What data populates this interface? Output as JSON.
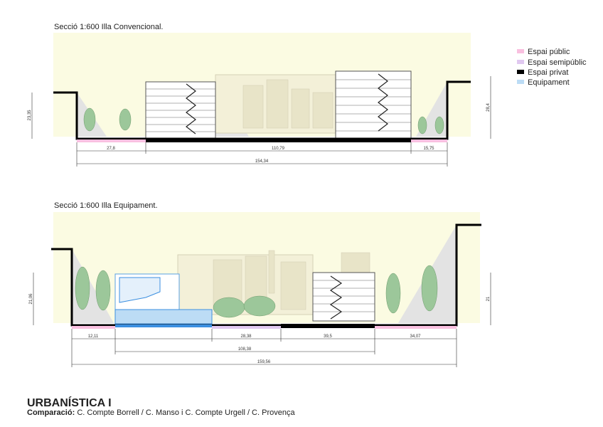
{
  "sections": [
    {
      "title": "Secció  1:600 Illa Convencional.",
      "dimensions": {
        "height_left": "23,35",
        "height_right": "28,4",
        "segments": [
          "27,8",
          "110,79",
          "15,75"
        ],
        "total": "154,34"
      }
    },
    {
      "title": "Secció  1:600 Illa Equipament.",
      "dimensions": {
        "height_left": "21,06",
        "height_right": "21",
        "segments": [
          "12,11",
          "28,38",
          "39,5",
          "34,07"
        ],
        "span": "108,38",
        "total": "159,56"
      }
    }
  ],
  "legend": [
    "Espai públic",
    "Espai semipúblic",
    "Espai privat",
    "Equipament"
  ],
  "footer": {
    "title": "URBANÍSTICA I",
    "label": "Comparació:",
    "subtitle": "C. Compte Borrell / C. Manso i C. Compte Urgell / C. Provença"
  }
}
